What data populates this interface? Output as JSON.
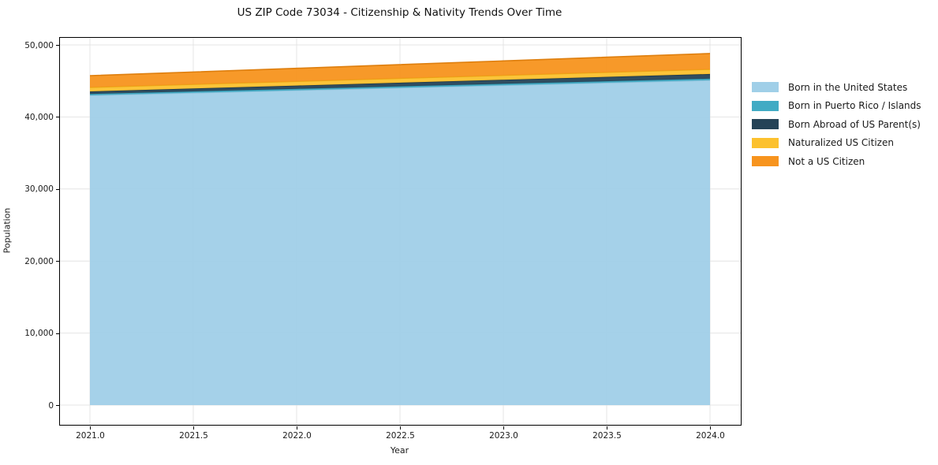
{
  "title": "US ZIP Code 73034 - Citizenship & Nativity Trends Over Time",
  "axes": {
    "xlabel": "Year",
    "ylabel": "Population",
    "x_ticks": [
      {
        "value": 2021.0,
        "label": "2021.0"
      },
      {
        "value": 2021.5,
        "label": "2021.5"
      },
      {
        "value": 2022.0,
        "label": "2022.0"
      },
      {
        "value": 2022.5,
        "label": "2022.5"
      },
      {
        "value": 2023.0,
        "label": "2023.0"
      },
      {
        "value": 2023.5,
        "label": "2023.5"
      },
      {
        "value": 2024.0,
        "label": "2024.0"
      }
    ],
    "y_ticks": [
      {
        "value": 0,
        "label": "0"
      },
      {
        "value": 10000,
        "label": "10,000"
      },
      {
        "value": 20000,
        "label": "20,000"
      },
      {
        "value": 30000,
        "label": "30,000"
      },
      {
        "value": 40000,
        "label": "40,000"
      },
      {
        "value": 50000,
        "label": "50,000"
      }
    ]
  },
  "colors": {
    "grid": "#e4e4e4",
    "spine": "#000000",
    "background": "#ffffff"
  },
  "chart_data": {
    "type": "area",
    "stacked": true,
    "title": "US ZIP Code 73034 - Citizenship & Nativity Trends Over Time",
    "xlabel": "Year",
    "ylabel": "Population",
    "x": [
      2021,
      2022,
      2023,
      2024
    ],
    "series": [
      {
        "name": "Born in the United States",
        "values": [
          43000,
          43700,
          44400,
          45100
        ],
        "color": "#a0cfe8",
        "edge_color": "#8fc2dc"
      },
      {
        "name": "Born in Puerto Rico / Islands",
        "values": [
          200,
          205,
          210,
          215
        ],
        "color": "#41abc4",
        "edge_color": "#389cb4"
      },
      {
        "name": "Born Abroad of US Parent(s)",
        "values": [
          350,
          450,
          550,
          650
        ],
        "color": "#254357",
        "edge_color": "#1d3749"
      },
      {
        "name": "Naturalized US Citizen",
        "values": [
          560,
          590,
          620,
          650
        ],
        "color": "#fcc12e",
        "edge_color": "#e9a816"
      },
      {
        "name": "Not a US Citizen",
        "values": [
          1620,
          1810,
          2000,
          2190
        ],
        "color": "#f7941e",
        "edge_color": "#de7e0d"
      }
    ],
    "stack_totals": [
      45730,
      46755,
      47780,
      48805
    ],
    "xlim": [
      2020.855,
      2024.145
    ],
    "ylim": [
      -2450,
      51250
    ],
    "grid": true,
    "legend_position": "center-right-outside"
  }
}
